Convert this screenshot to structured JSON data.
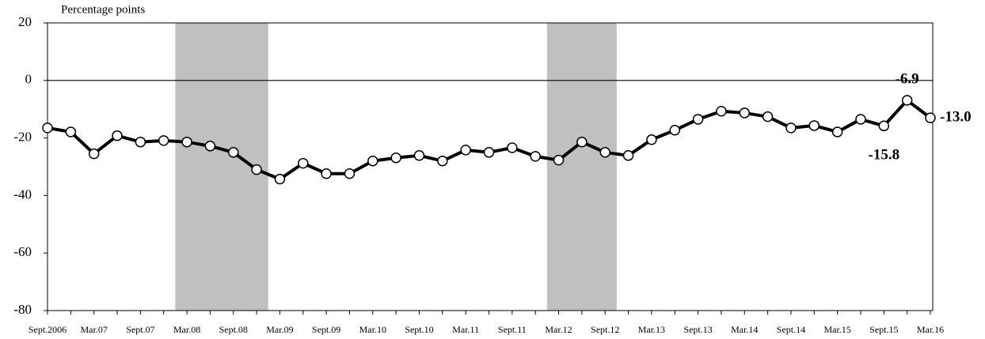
{
  "chart_data": {
    "type": "line",
    "y_label": "Percentage points",
    "categories": [
      "Sept.2006",
      null,
      "Mar.07",
      null,
      "Sept.07",
      null,
      "Mar.08",
      null,
      "Sept.08",
      null,
      "Mar.09",
      null,
      "Sept.09",
      null,
      "Mar.10",
      null,
      "Sept.10",
      null,
      "Mar.11",
      null,
      "Sept.11",
      null,
      "Mar.12",
      null,
      "Sept.12",
      null,
      "Mar.13",
      null,
      "Sept.13",
      null,
      "Mar.14",
      null,
      "Sept.14",
      null,
      "Mar.15",
      null,
      "Sept.15",
      null,
      "Mar.16"
    ],
    "values": [
      -16.5,
      -17.9,
      -25.5,
      -19.2,
      -21.4,
      -20.9,
      -21.4,
      -22.8,
      -25,
      -31,
      -34.3,
      -28.8,
      -32.4,
      -32.4,
      -28,
      -26.9,
      -26.1,
      -28,
      -24.2,
      -25,
      -23.4,
      -26.4,
      -27.7,
      -21.4,
      -25,
      -26.1,
      -20.6,
      -17.3,
      -13.5,
      -10.7,
      -11.3,
      -12.6,
      -16.5,
      -15.7,
      -17.9,
      -13.5,
      -15.8,
      -6.9,
      -13.0
    ],
    "value_labels": [
      null,
      null,
      null,
      null,
      null,
      null,
      null,
      null,
      null,
      null,
      null,
      null,
      null,
      null,
      null,
      null,
      null,
      null,
      null,
      null,
      null,
      null,
      null,
      null,
      null,
      null,
      null,
      null,
      null,
      null,
      null,
      null,
      null,
      null,
      null,
      null,
      "-15.8",
      "-6.9",
      "-13.0"
    ],
    "color": "#000000",
    "shaded_periods": [
      {
        "from": 6,
        "to": 9
      },
      {
        "from": 22,
        "to": 24
      }
    ],
    "shade_color": "#c0c0c0",
    "ylim": [
      -80,
      20
    ],
    "yticks": [
      20,
      0,
      -20,
      -40,
      -60,
      -80
    ]
  }
}
